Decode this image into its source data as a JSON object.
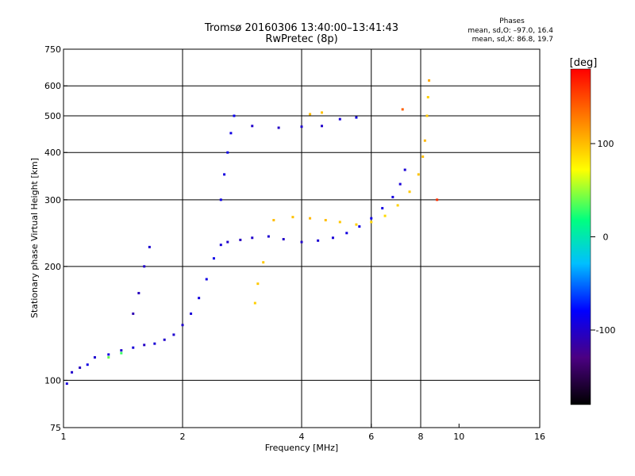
{
  "chart_data": {
    "type": "scatter",
    "title": "Tromsø 20160306 13:40:00–13:41:43",
    "subtitle": "RwPretec (8p)",
    "xlabel": "Frequency [MHz]",
    "ylabel": "Stationary phase Virtual Height [km]",
    "x_scale": "log",
    "y_scale": "log",
    "xlim": [
      1,
      16
    ],
    "ylim": [
      75,
      750
    ],
    "x_ticks": [
      1,
      2,
      4,
      6,
      8,
      10,
      16
    ],
    "y_ticks": [
      75,
      100,
      200,
      300,
      400,
      500,
      600,
      750
    ],
    "x_gridlines": [
      2,
      4,
      6,
      8
    ],
    "y_gridlines": [
      100,
      200,
      300,
      400,
      500,
      600
    ],
    "phases_header": "Phases",
    "stats_o": "mean, sd,O: –97.0, 16.4",
    "stats_x": "mean, sd,X:  86.8, 19.7",
    "colorbar": {
      "label": "[deg]",
      "ticks": [
        100,
        0,
        -100
      ],
      "range": [
        -180,
        180
      ],
      "colors": [
        "#000000",
        "#4b0082",
        "#0000ff",
        "#00bfff",
        "#00ff80",
        "#ffff00",
        "#ff8000",
        "#ff0000"
      ]
    },
    "series": [
      {
        "points": [
          [
            1.02,
            98,
            -95
          ],
          [
            1.05,
            105,
            -100
          ],
          [
            1.1,
            108,
            -105
          ],
          [
            1.15,
            110,
            -90
          ],
          [
            1.2,
            115,
            -98
          ],
          [
            1.3,
            117,
            -92
          ],
          [
            1.4,
            120,
            -100
          ],
          [
            1.5,
            122,
            -95
          ],
          [
            1.6,
            124,
            -102
          ],
          [
            1.7,
            125,
            -96
          ],
          [
            1.8,
            128,
            -100
          ],
          [
            1.9,
            132,
            -98
          ],
          [
            2.0,
            140,
            -100
          ],
          [
            2.1,
            150,
            -95
          ],
          [
            2.2,
            165,
            -92
          ],
          [
            2.3,
            185,
            -90
          ],
          [
            2.4,
            210,
            -88
          ],
          [
            2.5,
            228,
            -95
          ],
          [
            2.6,
            232,
            -100
          ],
          [
            2.8,
            235,
            -105
          ],
          [
            3.0,
            238,
            -100
          ],
          [
            3.3,
            240,
            -98
          ],
          [
            3.6,
            236,
            -102
          ],
          [
            4.0,
            232,
            -100
          ],
          [
            4.4,
            234,
            -97
          ],
          [
            4.8,
            238,
            -95
          ],
          [
            5.2,
            245,
            -92
          ],
          [
            5.6,
            255,
            -90
          ],
          [
            6.0,
            268,
            -88
          ],
          [
            6.4,
            285,
            -90
          ],
          [
            6.8,
            305,
            -92
          ],
          [
            7.1,
            330,
            -95
          ],
          [
            7.3,
            360,
            -96
          ],
          [
            2.5,
            300,
            -90
          ],
          [
            2.55,
            350,
            -92
          ],
          [
            2.6,
            400,
            -88
          ],
          [
            2.65,
            450,
            -90
          ],
          [
            2.7,
            500,
            -85
          ],
          [
            3.0,
            470,
            -100
          ],
          [
            3.5,
            465,
            -102
          ],
          [
            4.0,
            468,
            -98
          ],
          [
            4.5,
            470,
            -100
          ],
          [
            5.0,
            490,
            -95
          ],
          [
            5.5,
            495,
            -92
          ],
          [
            1.5,
            150,
            -110
          ],
          [
            1.55,
            170,
            -105
          ],
          [
            1.6,
            200,
            -100
          ],
          [
            1.65,
            225,
            -98
          ]
        ]
      },
      {
        "points": [
          [
            3.2,
            205,
            95
          ],
          [
            3.4,
            265,
            100
          ],
          [
            3.8,
            270,
            98
          ],
          [
            4.2,
            268,
            102
          ],
          [
            4.6,
            265,
            100
          ],
          [
            5.0,
            262,
            96
          ],
          [
            5.5,
            258,
            92
          ],
          [
            6.0,
            262,
            90
          ],
          [
            6.5,
            272,
            88
          ],
          [
            7.0,
            290,
            92
          ],
          [
            7.5,
            315,
            95
          ],
          [
            7.9,
            350,
            98
          ],
          [
            8.1,
            390,
            100
          ],
          [
            8.2,
            430,
            102
          ],
          [
            8.3,
            500,
            95
          ],
          [
            8.35,
            560,
            92
          ],
          [
            4.2,
            505,
            100
          ],
          [
            4.5,
            510,
            98
          ],
          [
            3.1,
            180,
            95
          ],
          [
            3.05,
            160,
            92
          ],
          [
            1.3,
            115,
            40
          ],
          [
            1.4,
            118,
            30
          ],
          [
            8.4,
            620,
            110
          ],
          [
            7.2,
            520,
            140
          ],
          [
            8.8,
            300,
            160
          ]
        ]
      }
    ]
  }
}
